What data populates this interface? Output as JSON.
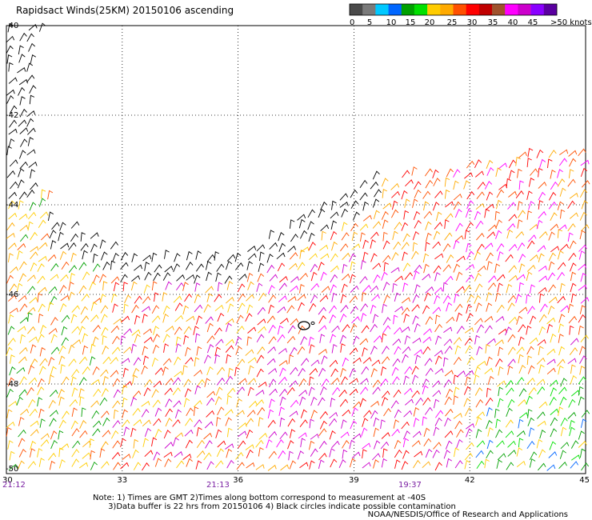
{
  "title": "Rapidsact Winds(25KM) 20150106 ascending",
  "colorbar": {
    "labels": [
      "0",
      "5",
      "10",
      "15",
      "20",
      "25",
      "30",
      "35",
      "40",
      "45",
      ">50 knots"
    ],
    "colors": [
      "#4a4a4a",
      "#7a7a7a",
      "#00c8ff",
      "#0066ff",
      "#00a000",
      "#00e000",
      "#ffcc00",
      "#ffaa00",
      "#ff5000",
      "#ff0000",
      "#c00000",
      "#a0522d",
      "#ff00ff",
      "#cc00cc",
      "#8a00ff",
      "#5a00a0"
    ]
  },
  "lat_labels": [
    "-40",
    "-42",
    "-44",
    "-46",
    "-48",
    "-50"
  ],
  "lon_labels": [
    "30",
    "33",
    "36",
    "39",
    "42",
    "45"
  ],
  "time_labels": [
    "21:12",
    "21:13",
    "19:37"
  ],
  "notes": {
    "line1": "Note: 1) Times are GMT 2)Times along bottom correspond to measurement at -40S",
    "line2": "      3)Data buffer is 22 hrs from 20150106 4) Black circles indicate possible contamination"
  },
  "credit": "NOAA/NESDIS/Office of Research and Applications"
}
